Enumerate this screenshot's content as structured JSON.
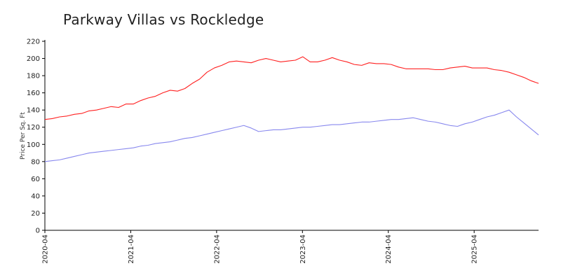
{
  "chart_data": {
    "type": "line",
    "title": "Parkway Villas vs Rockledge",
    "xlabel": "",
    "ylabel": "Price Per Sq. Ft",
    "ylim": [
      0,
      220
    ],
    "yticks": [
      0,
      20,
      40,
      60,
      80,
      100,
      120,
      140,
      160,
      180,
      200,
      220
    ],
    "x_start": "2020-04",
    "x_end": "2026-01",
    "xticks": [
      "2020-04",
      "2021-04",
      "2022-04",
      "2023-04",
      "2024-04",
      "2025-04"
    ],
    "grid": false,
    "legend": "none",
    "series": [
      {
        "name": "Parkway Villas",
        "color": "#ff2020",
        "values": [
          129,
          130,
          132,
          133,
          135,
          136,
          139,
          140,
          142,
          144,
          143,
          147,
          147,
          151,
          154,
          156,
          160,
          163,
          162,
          165,
          171,
          176,
          184,
          189,
          192,
          196,
          197,
          196,
          195,
          198,
          200,
          198,
          196,
          197,
          198,
          202,
          196,
          196,
          198,
          201,
          198,
          196,
          193,
          192,
          195,
          194,
          194,
          193,
          190,
          188,
          188,
          188,
          188,
          187,
          187,
          189,
          190,
          191,
          189,
          189,
          189,
          187,
          186,
          184,
          181,
          178,
          174,
          171
        ]
      },
      {
        "name": "Rockledge",
        "color": "#8888ee",
        "values": [
          80,
          81,
          82,
          84,
          86,
          88,
          90,
          91,
          92,
          93,
          94,
          95,
          96,
          98,
          99,
          101,
          102,
          103,
          105,
          107,
          108,
          110,
          112,
          114,
          116,
          118,
          120,
          122,
          119,
          115,
          116,
          117,
          117,
          118,
          119,
          120,
          120,
          121,
          122,
          123,
          123,
          124,
          125,
          126,
          126,
          127,
          128,
          129,
          129,
          130,
          131,
          129,
          127,
          126,
          124,
          122,
          121,
          124,
          126,
          129,
          132,
          134,
          137,
          140,
          132,
          125,
          118,
          111
        ]
      }
    ]
  }
}
